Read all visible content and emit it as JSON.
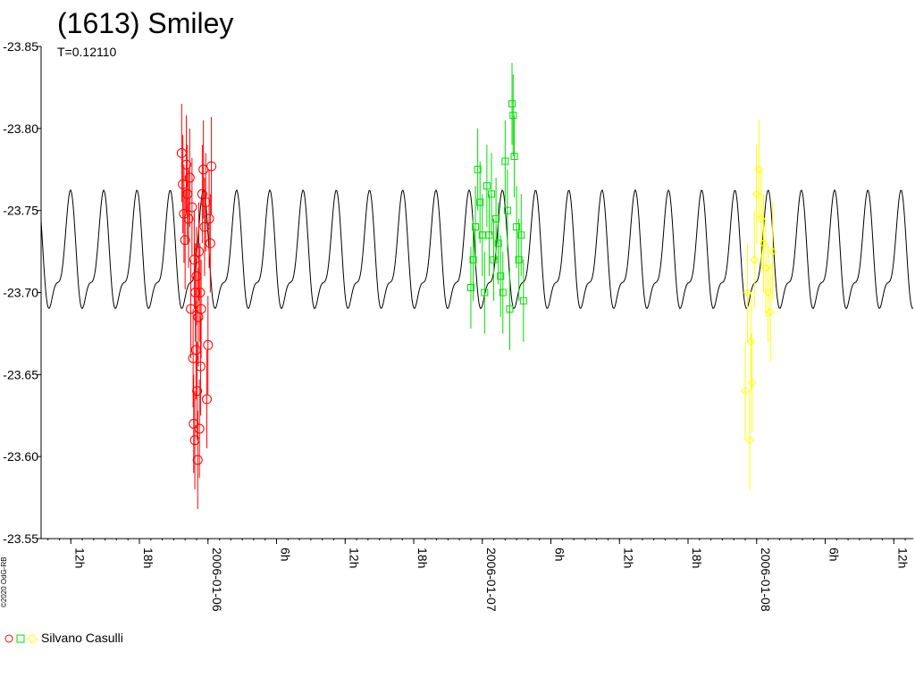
{
  "chart_data": {
    "type": "scatter",
    "title": "(1613) Smiley",
    "subtitle": "T=0.12110",
    "y_ticks": [
      "-23.85",
      "-23.80",
      "-23.75",
      "-23.70",
      "-23.65",
      "-23.60",
      "-23.55"
    ],
    "ylim": [
      -23.55,
      -23.85
    ],
    "y_inverted": true,
    "x_ticks": [
      "12h",
      "18h",
      "2006-01-06",
      "6h",
      "12h",
      "18h",
      "2006-01-07",
      "6h",
      "12h",
      "18h",
      "2006-01-08",
      "6h",
      "12h"
    ],
    "xlim_hours": [
      9.4,
      85.7
    ],
    "grid": false,
    "model_curve": {
      "period_hours": 2.9064,
      "mean": -23.72,
      "primary_amplitude": 0.031,
      "secondary_amplitude": 0.0125
    },
    "series": [
      {
        "color": "#ff0000",
        "marker": "circle",
        "points": [
          [
            21.7,
            -23.785
          ],
          [
            21.8,
            -23.766
          ],
          [
            21.9,
            -23.748
          ],
          [
            22.0,
            -23.732
          ],
          [
            22.1,
            -23.778
          ],
          [
            22.2,
            -23.76
          ],
          [
            22.3,
            -23.745
          ],
          [
            22.4,
            -23.77
          ],
          [
            22.5,
            -23.69
          ],
          [
            22.6,
            -23.752
          ],
          [
            22.7,
            -23.66
          ],
          [
            22.75,
            -23.62
          ],
          [
            22.8,
            -23.72
          ],
          [
            22.85,
            -23.61
          ],
          [
            22.9,
            -23.7
          ],
          [
            22.95,
            -23.665
          ],
          [
            23.0,
            -23.71
          ],
          [
            23.05,
            -23.64
          ],
          [
            23.1,
            -23.598
          ],
          [
            23.15,
            -23.685
          ],
          [
            23.2,
            -23.725
          ],
          [
            23.25,
            -23.617
          ],
          [
            23.3,
            -23.7
          ],
          [
            23.35,
            -23.655
          ],
          [
            23.4,
            -23.69
          ],
          [
            23.5,
            -23.76
          ],
          [
            23.6,
            -23.775
          ],
          [
            23.7,
            -23.74
          ],
          [
            23.8,
            -23.755
          ],
          [
            23.9,
            -23.635
          ],
          [
            24.0,
            -23.668
          ],
          [
            24.1,
            -23.745
          ],
          [
            24.2,
            -23.73
          ],
          [
            24.3,
            -23.777
          ]
        ],
        "error": 0.03
      },
      {
        "color": "#00dd00",
        "marker": "square",
        "points": [
          [
            47.0,
            -23.703
          ],
          [
            47.2,
            -23.72
          ],
          [
            47.4,
            -23.74
          ],
          [
            47.6,
            -23.775
          ],
          [
            47.8,
            -23.755
          ],
          [
            48.0,
            -23.735
          ],
          [
            48.2,
            -23.7
          ],
          [
            48.4,
            -23.765
          ],
          [
            48.6,
            -23.735
          ],
          [
            48.8,
            -23.76
          ],
          [
            49.0,
            -23.72
          ],
          [
            49.2,
            -23.745
          ],
          [
            49.4,
            -23.73
          ],
          [
            49.6,
            -23.71
          ],
          [
            49.8,
            -23.7
          ],
          [
            50.0,
            -23.78
          ],
          [
            50.2,
            -23.75
          ],
          [
            50.4,
            -23.69
          ],
          [
            50.6,
            -23.815
          ],
          [
            50.7,
            -23.808
          ],
          [
            50.8,
            -23.783
          ],
          [
            51.0,
            -23.74
          ],
          [
            51.2,
            -23.72
          ],
          [
            51.4,
            -23.735
          ],
          [
            51.6,
            -23.695
          ]
        ],
        "error": 0.025
      },
      {
        "color": "#ffff00",
        "marker": "diamond",
        "points": [
          [
            71.0,
            -23.64
          ],
          [
            71.2,
            -23.7
          ],
          [
            71.4,
            -23.61
          ],
          [
            71.5,
            -23.67
          ],
          [
            71.6,
            -23.645
          ],
          [
            71.8,
            -23.72
          ],
          [
            72.0,
            -23.76
          ],
          [
            72.2,
            -23.775
          ],
          [
            72.4,
            -23.745
          ],
          [
            72.6,
            -23.73
          ],
          [
            72.8,
            -23.715
          ],
          [
            73.0,
            -23.7
          ],
          [
            73.2,
            -23.688
          ],
          [
            73.4,
            -23.725
          ]
        ],
        "error": 0.03
      }
    ]
  },
  "legend": {
    "observer": "Silvano Casulli",
    "marker_colors": [
      "#ff0000",
      "#00dd00",
      "#ffff00"
    ]
  },
  "copyright": "©2020 OdG-RB"
}
